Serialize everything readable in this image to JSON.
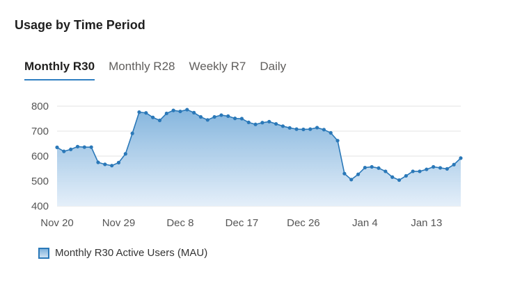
{
  "page": {
    "title": "Usage by Time Period"
  },
  "tabs": [
    {
      "label": "Monthly R30",
      "active": true
    },
    {
      "label": "Monthly R28",
      "active": false
    },
    {
      "label": "Weekly R7",
      "active": false
    },
    {
      "label": "Daily",
      "active": false
    }
  ],
  "colors": {
    "line": "#2a78b8",
    "area_top": "#7fb2dc",
    "area_bottom": "#e3eef9",
    "grid": "#e3e3e3",
    "tab_underline": "#2f7fc1"
  },
  "chart_data": {
    "type": "area",
    "title": "",
    "xlabel": "",
    "ylabel": "",
    "ylim": [
      400,
      800
    ],
    "yticks": [
      400,
      500,
      600,
      700,
      800
    ],
    "grid": true,
    "legend_position": "bottom-left",
    "x_tick_labels": [
      {
        "label": "Nov 20",
        "day_index": 0
      },
      {
        "label": "Nov 29",
        "day_index": 9
      },
      {
        "label": "Dec 8",
        "day_index": 18
      },
      {
        "label": "Dec 17",
        "day_index": 27
      },
      {
        "label": "Dec 26",
        "day_index": 36
      },
      {
        "label": "Jan 4",
        "day_index": 45
      },
      {
        "label": "Jan 13",
        "day_index": 54
      }
    ],
    "series": [
      {
        "name": "Monthly R30 Active Users (MAU)",
        "start_date": "Nov 20",
        "values": [
          635,
          619,
          627,
          638,
          636,
          636,
          575,
          567,
          562,
          574,
          609,
          691,
          776,
          773,
          755,
          743,
          771,
          783,
          779,
          786,
          774,
          757,
          745,
          757,
          764,
          760,
          751,
          750,
          735,
          727,
          734,
          738,
          729,
          720,
          713,
          708,
          707,
          708,
          714,
          706,
          693,
          662,
          530,
          506,
          527,
          554,
          557,
          552,
          539,
          516,
          504,
          521,
          539,
          539,
          547,
          557,
          553,
          549,
          566,
          592
        ]
      }
    ]
  }
}
